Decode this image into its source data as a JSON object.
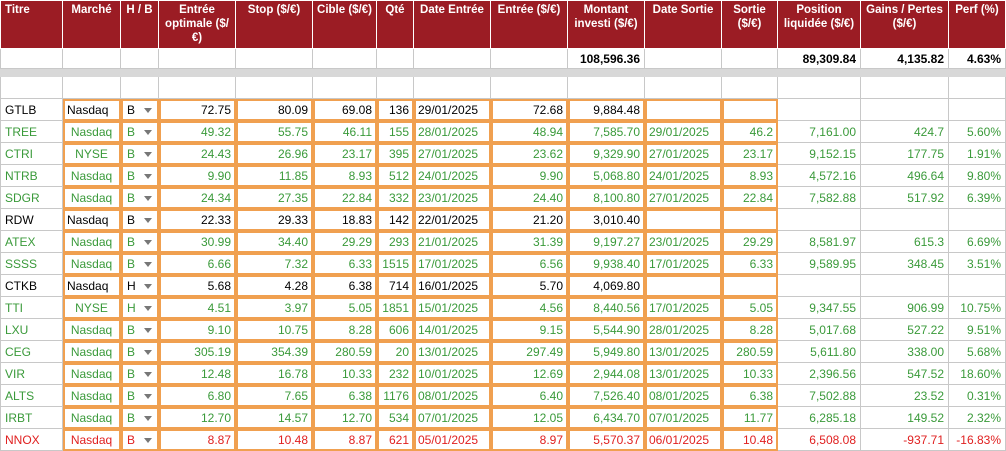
{
  "headers": [
    "Titre",
    "Marché",
    "H / B",
    "Entrée optimale ($/€)",
    "Stop ($/€)",
    "Cible ($/€)",
    "Qté",
    "Date Entrée",
    "Entrée ($/€)",
    "Montant investi ($/€)",
    "Date Sortie",
    "Sortie ($/€)",
    "Position liquidée ($/€)",
    "Gains / Pertes ($/€)",
    "Perf (%)"
  ],
  "totals": {
    "montant_investi": "108,596.36",
    "position_liquidee": "89,309.84",
    "gains_pertes": "4,135.82",
    "perf": "4.63%"
  },
  "colors": {
    "header_bg": "#9b1c24",
    "green": "#3a9a3a",
    "red": "#e02020",
    "orange_border": "#f0a050"
  },
  "rows": [
    {
      "status": "black",
      "titre": "GTLB",
      "marche": "Nasdaq",
      "hb": "B",
      "entree_opt": "72.75",
      "stop": "80.09",
      "cible": "69.08",
      "qte": "136",
      "date_entree": "29/01/2025",
      "entree": "72.68",
      "montant": "9,884.48",
      "date_sortie": "",
      "sortie": "",
      "position": "",
      "gains": "",
      "perf": ""
    },
    {
      "status": "green",
      "titre": "TREE",
      "marche": "Nasdaq",
      "hb": "B",
      "entree_opt": "49.32",
      "stop": "55.75",
      "cible": "46.11",
      "qte": "155",
      "date_entree": "28/01/2025",
      "entree": "48.94",
      "montant": "7,585.70",
      "date_sortie": "29/01/2025",
      "sortie": "46.2",
      "position": "7,161.00",
      "gains": "424.7",
      "perf": "5.60%"
    },
    {
      "status": "green",
      "titre": "CTRI",
      "marche": "NYSE",
      "hb": "B",
      "entree_opt": "24.43",
      "stop": "26.96",
      "cible": "23.17",
      "qte": "395",
      "date_entree": "27/01/2025",
      "entree": "23.62",
      "montant": "9,329.90",
      "date_sortie": "27/01/2025",
      "sortie": "23.17",
      "position": "9,152.15",
      "gains": "177.75",
      "perf": "1.91%"
    },
    {
      "status": "green",
      "titre": "NTRB",
      "marche": "Nasdaq",
      "hb": "B",
      "entree_opt": "9.90",
      "stop": "11.85",
      "cible": "8.93",
      "qte": "512",
      "date_entree": "24/01/2025",
      "entree": "9.90",
      "montant": "5,068.80",
      "date_sortie": "24/01/2025",
      "sortie": "8.93",
      "position": "4,572.16",
      "gains": "496.64",
      "perf": "9.80%"
    },
    {
      "status": "green",
      "titre": "SDGR",
      "marche": "Nasdaq",
      "hb": "B",
      "entree_opt": "24.34",
      "stop": "27.35",
      "cible": "22.84",
      "qte": "332",
      "date_entree": "23/01/2025",
      "entree": "24.40",
      "montant": "8,100.80",
      "date_sortie": "27/01/2025",
      "sortie": "22.84",
      "position": "7,582.88",
      "gains": "517.92",
      "perf": "6.39%"
    },
    {
      "status": "black",
      "titre": "RDW",
      "marche": "Nasdaq",
      "hb": "B",
      "entree_opt": "22.33",
      "stop": "29.33",
      "cible": "18.83",
      "qte": "142",
      "date_entree": "22/01/2025",
      "entree": "21.20",
      "montant": "3,010.40",
      "date_sortie": "",
      "sortie": "",
      "position": "",
      "gains": "",
      "perf": ""
    },
    {
      "status": "green",
      "titre": "ATEX",
      "marche": "Nasdaq",
      "hb": "B",
      "entree_opt": "30.99",
      "stop": "34.40",
      "cible": "29.29",
      "qte": "293",
      "date_entree": "21/01/2025",
      "entree": "31.39",
      "montant": "9,197.27",
      "date_sortie": "23/01/2025",
      "sortie": "29.29",
      "position": "8,581.97",
      "gains": "615.3",
      "perf": "6.69%"
    },
    {
      "status": "green",
      "titre": "SSSS",
      "marche": "Nasdaq",
      "hb": "B",
      "entree_opt": "6.66",
      "stop": "7.32",
      "cible": "6.33",
      "qte": "1515",
      "date_entree": "17/01/2025",
      "entree": "6.56",
      "montant": "9,938.40",
      "date_sortie": "17/01/2025",
      "sortie": "6.33",
      "position": "9,589.95",
      "gains": "348.45",
      "perf": "3.51%"
    },
    {
      "status": "black",
      "titre": "CTKB",
      "marche": "Nasdaq",
      "hb": "H",
      "entree_opt": "5.68",
      "stop": "4.28",
      "cible": "6.38",
      "qte": "714",
      "date_entree": "16/01/2025",
      "entree": "5.70",
      "montant": "4,069.80",
      "date_sortie": "",
      "sortie": "",
      "position": "",
      "gains": "",
      "perf": ""
    },
    {
      "status": "green",
      "titre": "TTI",
      "marche": "NYSE",
      "hb": "H",
      "entree_opt": "4.51",
      "stop": "3.97",
      "cible": "5.05",
      "qte": "1851",
      "date_entree": "15/01/2025",
      "entree": "4.56",
      "montant": "8,440.56",
      "date_sortie": "17/01/2025",
      "sortie": "5.05",
      "position": "9,347.55",
      "gains": "906.99",
      "perf": "10.75%"
    },
    {
      "status": "green",
      "titre": "LXU",
      "marche": "Nasdaq",
      "hb": "B",
      "entree_opt": "9.10",
      "stop": "10.75",
      "cible": "8.28",
      "qte": "606",
      "date_entree": "14/01/2025",
      "entree": "9.15",
      "montant": "5,544.90",
      "date_sortie": "28/01/2025",
      "sortie": "8.28",
      "position": "5,017.68",
      "gains": "527.22",
      "perf": "9.51%"
    },
    {
      "status": "green",
      "titre": "CEG",
      "marche": "Nasdaq",
      "hb": "B",
      "entree_opt": "305.19",
      "stop": "354.39",
      "cible": "280.59",
      "qte": "20",
      "date_entree": "13/01/2025",
      "entree": "297.49",
      "montant": "5,949.80",
      "date_sortie": "13/01/2025",
      "sortie": "280.59",
      "position": "5,611.80",
      "gains": "338.00",
      "perf": "5.68%"
    },
    {
      "status": "green",
      "titre": "VIR",
      "marche": "Nasdaq",
      "hb": "B",
      "entree_opt": "12.48",
      "stop": "16.78",
      "cible": "10.33",
      "qte": "232",
      "date_entree": "10/01/2025",
      "entree": "12.69",
      "montant": "2,944.08",
      "date_sortie": "13/01/2025",
      "sortie": "10.33",
      "position": "2,396.56",
      "gains": "547.52",
      "perf": "18.60%"
    },
    {
      "status": "green",
      "titre": "ALTS",
      "marche": "Nasdaq",
      "hb": "B",
      "entree_opt": "6.80",
      "stop": "7.65",
      "cible": "6.38",
      "qte": "1176",
      "date_entree": "08/01/2025",
      "entree": "6.40",
      "montant": "7,526.40",
      "date_sortie": "08/01/2025",
      "sortie": "6.38",
      "position": "7,502.88",
      "gains": "23.52",
      "perf": "0.31%"
    },
    {
      "status": "green",
      "titre": "IRBT",
      "marche": "Nasdaq",
      "hb": "B",
      "entree_opt": "12.70",
      "stop": "14.57",
      "cible": "12.70",
      "qte": "534",
      "date_entree": "07/01/2025",
      "entree": "12.05",
      "montant": "6,434.70",
      "date_sortie": "07/01/2025",
      "sortie": "11.77",
      "position": "6,285.18",
      "gains": "149.52",
      "perf": "2.32%"
    },
    {
      "status": "red",
      "titre": "NNOX",
      "marche": "Nasdaq",
      "hb": "B",
      "entree_opt": "8.87",
      "stop": "10.48",
      "cible": "8.87",
      "qte": "621",
      "date_entree": "05/01/2025",
      "entree": "8.97",
      "montant": "5,570.37",
      "date_sortie": "06/01/2025",
      "sortie": "10.48",
      "position": "6,508.08",
      "gains": "-937.71",
      "perf": "-16.83%"
    }
  ]
}
